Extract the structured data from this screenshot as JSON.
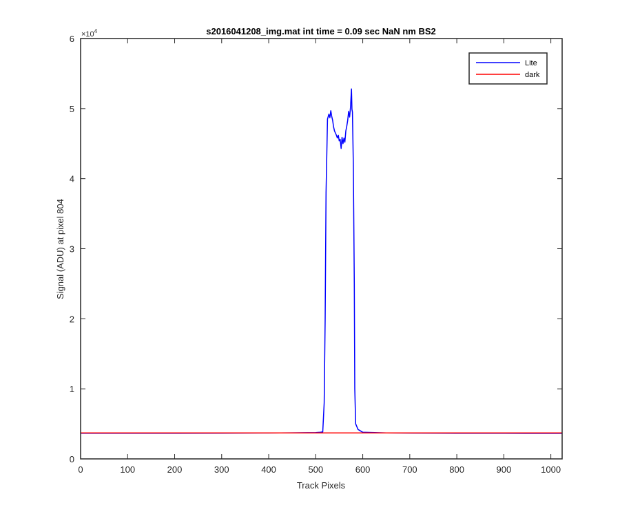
{
  "chart_data": {
    "type": "line",
    "title": "s2016041208_img.mat int time = 0.09 sec  NaN nm BS2",
    "xlabel": "Track Pixels",
    "ylabel": "Signal (ADU) at pixel 804",
    "xlim": [
      0,
      1024
    ],
    "ylim": [
      0,
      60000
    ],
    "y_exponent_label": "×10",
    "y_exponent_power": "4",
    "xticks": [
      0,
      100,
      200,
      300,
      400,
      500,
      600,
      700,
      800,
      900,
      1000
    ],
    "xtick_labels": [
      "0",
      "100",
      "200",
      "300",
      "400",
      "500",
      "600",
      "700",
      "800",
      "900",
      "1000"
    ],
    "yticks": [
      0,
      10000,
      20000,
      30000,
      40000,
      50000,
      60000
    ],
    "ytick_labels": [
      "0",
      "1",
      "2",
      "3",
      "4",
      "5",
      "6"
    ],
    "grid": false,
    "legend_position": "top-right",
    "series": [
      {
        "name": "Lite",
        "color": "#0000ff",
        "x": [
          0,
          100,
          200,
          300,
          400,
          450,
          500,
          510,
          515,
          518,
          520,
          522,
          525,
          528,
          530,
          532,
          534,
          536,
          538,
          540,
          542,
          544,
          546,
          548,
          550,
          552,
          554,
          556,
          558,
          560,
          562,
          564,
          566,
          568,
          570,
          572,
          574,
          576,
          577,
          578,
          580,
          582,
          583,
          585,
          590,
          600,
          650,
          700,
          800,
          900,
          1024
        ],
        "y": [
          3650,
          3650,
          3660,
          3670,
          3690,
          3720,
          3760,
          3800,
          3850,
          8000,
          20000,
          38000,
          48500,
          49200,
          48700,
          49700,
          48900,
          48300,
          47400,
          46800,
          46500,
          46200,
          45800,
          46200,
          45400,
          45600,
          44300,
          45900,
          45000,
          45800,
          45200,
          46800,
          47500,
          48300,
          49600,
          48800,
          50200,
          52800,
          49900,
          49500,
          42000,
          25000,
          10000,
          5000,
          4200,
          3800,
          3700,
          3680,
          3660,
          3650,
          3640
        ]
      },
      {
        "name": "dark",
        "color": "#ff0000",
        "x": [
          0,
          200,
          400,
          600,
          800,
          1024
        ],
        "y": [
          3700,
          3700,
          3700,
          3700,
          3700,
          3700
        ]
      }
    ]
  }
}
